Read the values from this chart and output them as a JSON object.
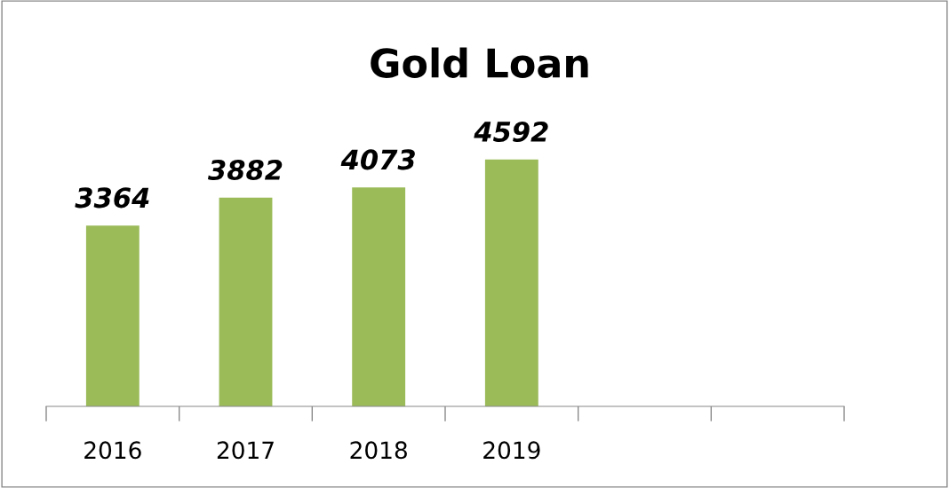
{
  "chart_data": {
    "type": "bar",
    "title": "Gold Loan",
    "categories": [
      "2016",
      "2017",
      "2018",
      "2019",
      null,
      null
    ],
    "values": [
      3364,
      3882,
      4073,
      4592,
      null,
      null
    ],
    "color": "#9bbb59",
    "data_labels": true,
    "grid": false,
    "legend": false,
    "tick_labels": "x"
  }
}
